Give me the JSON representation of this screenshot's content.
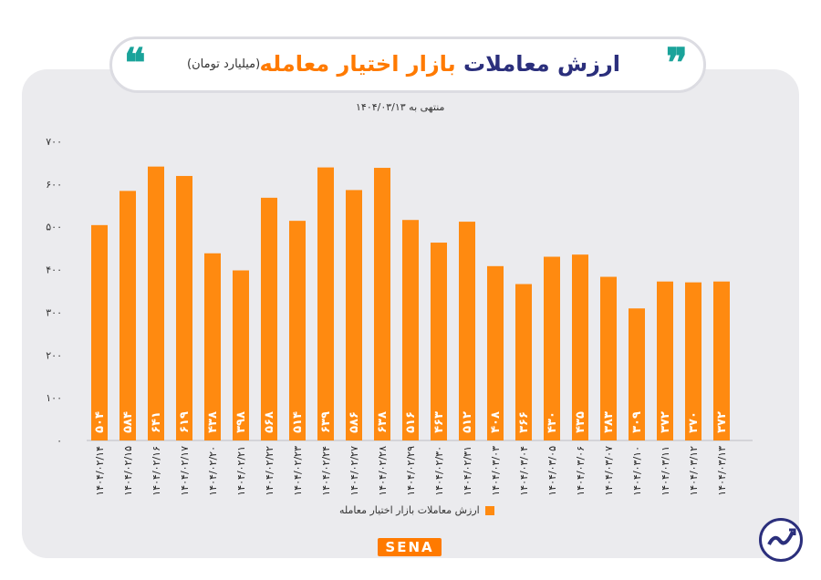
{
  "header": {
    "title_part1": "ارزش معاملات",
    "title_part2": "بازار اختیار معامله",
    "unit": "(میلیارد تومان)",
    "subtitle": "منتهی به ۱۴۰۴/۰۳/۱۳"
  },
  "footer": {
    "logo_text": "SENA"
  },
  "colors": {
    "bar": "#ff8a10",
    "title_dark": "#2b2f7c",
    "title_accent": "#ff7a00",
    "quote": "#1aa39a"
  },
  "chart_data": {
    "type": "bar",
    "title": "ارزش معاملات بازار اختیار معامله",
    "ylabel": "میلیارد تومان",
    "ylim": [
      0,
      700
    ],
    "yticks": [
      0,
      100,
      200,
      300,
      400,
      500,
      600,
      700
    ],
    "ytick_labels": [
      "۰",
      "۱۰۰",
      "۲۰۰",
      "۳۰۰",
      "۴۰۰",
      "۵۰۰",
      "۶۰۰",
      "۷۰۰"
    ],
    "legend": "ارزش معاملات بازار اختیار معامله",
    "categories": [
      "۱۴۰۴/۰۲/۱۴",
      "۱۴۰۴/۰۲/۱۵",
      "۱۴۰۴/۰۲/۱۶",
      "۱۴۰۴/۰۲/۱۷",
      "۱۴۰۴/۰۲/۲۰",
      "۱۴۰۴/۰۲/۲۱",
      "۱۴۰۴/۰۲/۲۲",
      "۱۴۰۴/۰۲/۲۳",
      "۱۴۰۴/۰۲/۲۴",
      "۱۴۰۴/۰۲/۲۷",
      "۱۴۰۴/۰۲/۲۸",
      "۱۴۰۴/۰۲/۲۹",
      "۱۴۰۴/۰۲/۳۰",
      "۱۴۰۴/۰۲/۳۱",
      "۱۴۰۴/۰۳/۰۳",
      "۱۴۰۴/۰۳/۰۴",
      "۱۴۰۴/۰۳/۰۵",
      "۱۴۰۴/۰۳/۰۶",
      "۱۴۰۴/۰۳/۰۷",
      "۱۴۰۴/۰۳/۱۰",
      "۱۴۰۴/۰۳/۱۱",
      "۱۴۰۴/۰۳/۱۲",
      "۱۴۰۴/۰۳/۱۳"
    ],
    "values": [
      504,
      584,
      641,
      619,
      438,
      398,
      568,
      514,
      639,
      586,
      638,
      516,
      463,
      512,
      408,
      366,
      430,
      435,
      383,
      309,
      372,
      370,
      372
    ],
    "value_labels": [
      "۵۰۴",
      "۵۸۴",
      "۶۴۱",
      "۶۱۹",
      "۴۳۸",
      "۳۹۸",
      "۵۶۸",
      "۵۱۴",
      "۶۳۹",
      "۵۸۶",
      "۶۳۸",
      "۵۱۶",
      "۴۶۳",
      "۵۱۲",
      "۴۰۸",
      "۳۶۶",
      "۴۳۰",
      "۴۳۵",
      "۳۸۳",
      "۳۰۹",
      "۳۷۲",
      "۳۷۰",
      "۳۷۲"
    ]
  }
}
